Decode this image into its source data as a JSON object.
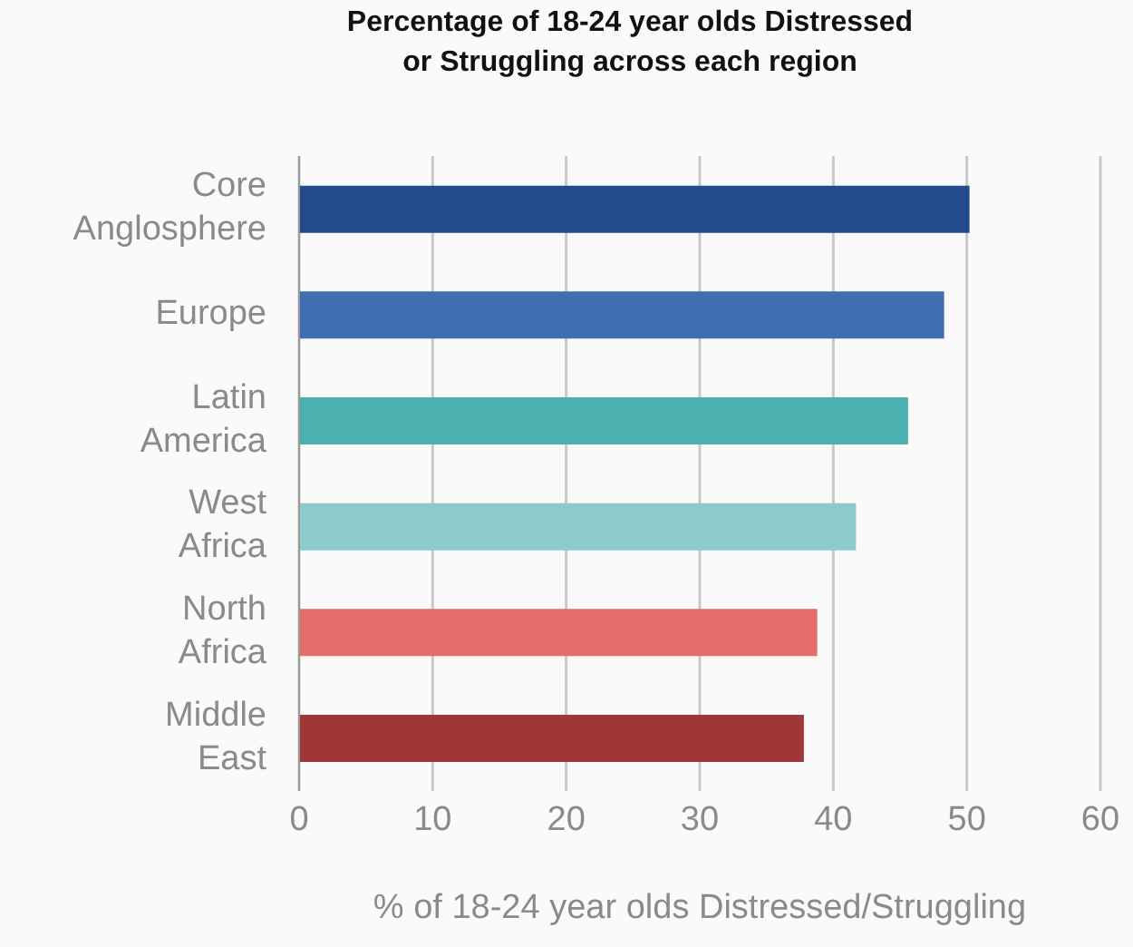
{
  "chart_data": {
    "type": "bar",
    "orientation": "horizontal",
    "title": "Percentage of 18-24 year olds Distressed or Struggling across each region",
    "xlabel": "% of 18-24 year olds Distressed/Struggling",
    "categories": [
      "Core Anglosphere",
      "Europe",
      "Latin America",
      "West Africa",
      "North Africa",
      "Middle East"
    ],
    "values": [
      50.2,
      48.3,
      45.6,
      41.7,
      38.8,
      37.8
    ],
    "colors": [
      "#224b8b",
      "#3f6fb0",
      "#4ab0b0",
      "#8ccbcb",
      "#e46c69",
      "#a03737"
    ],
    "xlim": [
      0,
      60
    ],
    "xticks": [
      0,
      10,
      20,
      30,
      40,
      50,
      60
    ],
    "grid": "x",
    "legend": false
  }
}
